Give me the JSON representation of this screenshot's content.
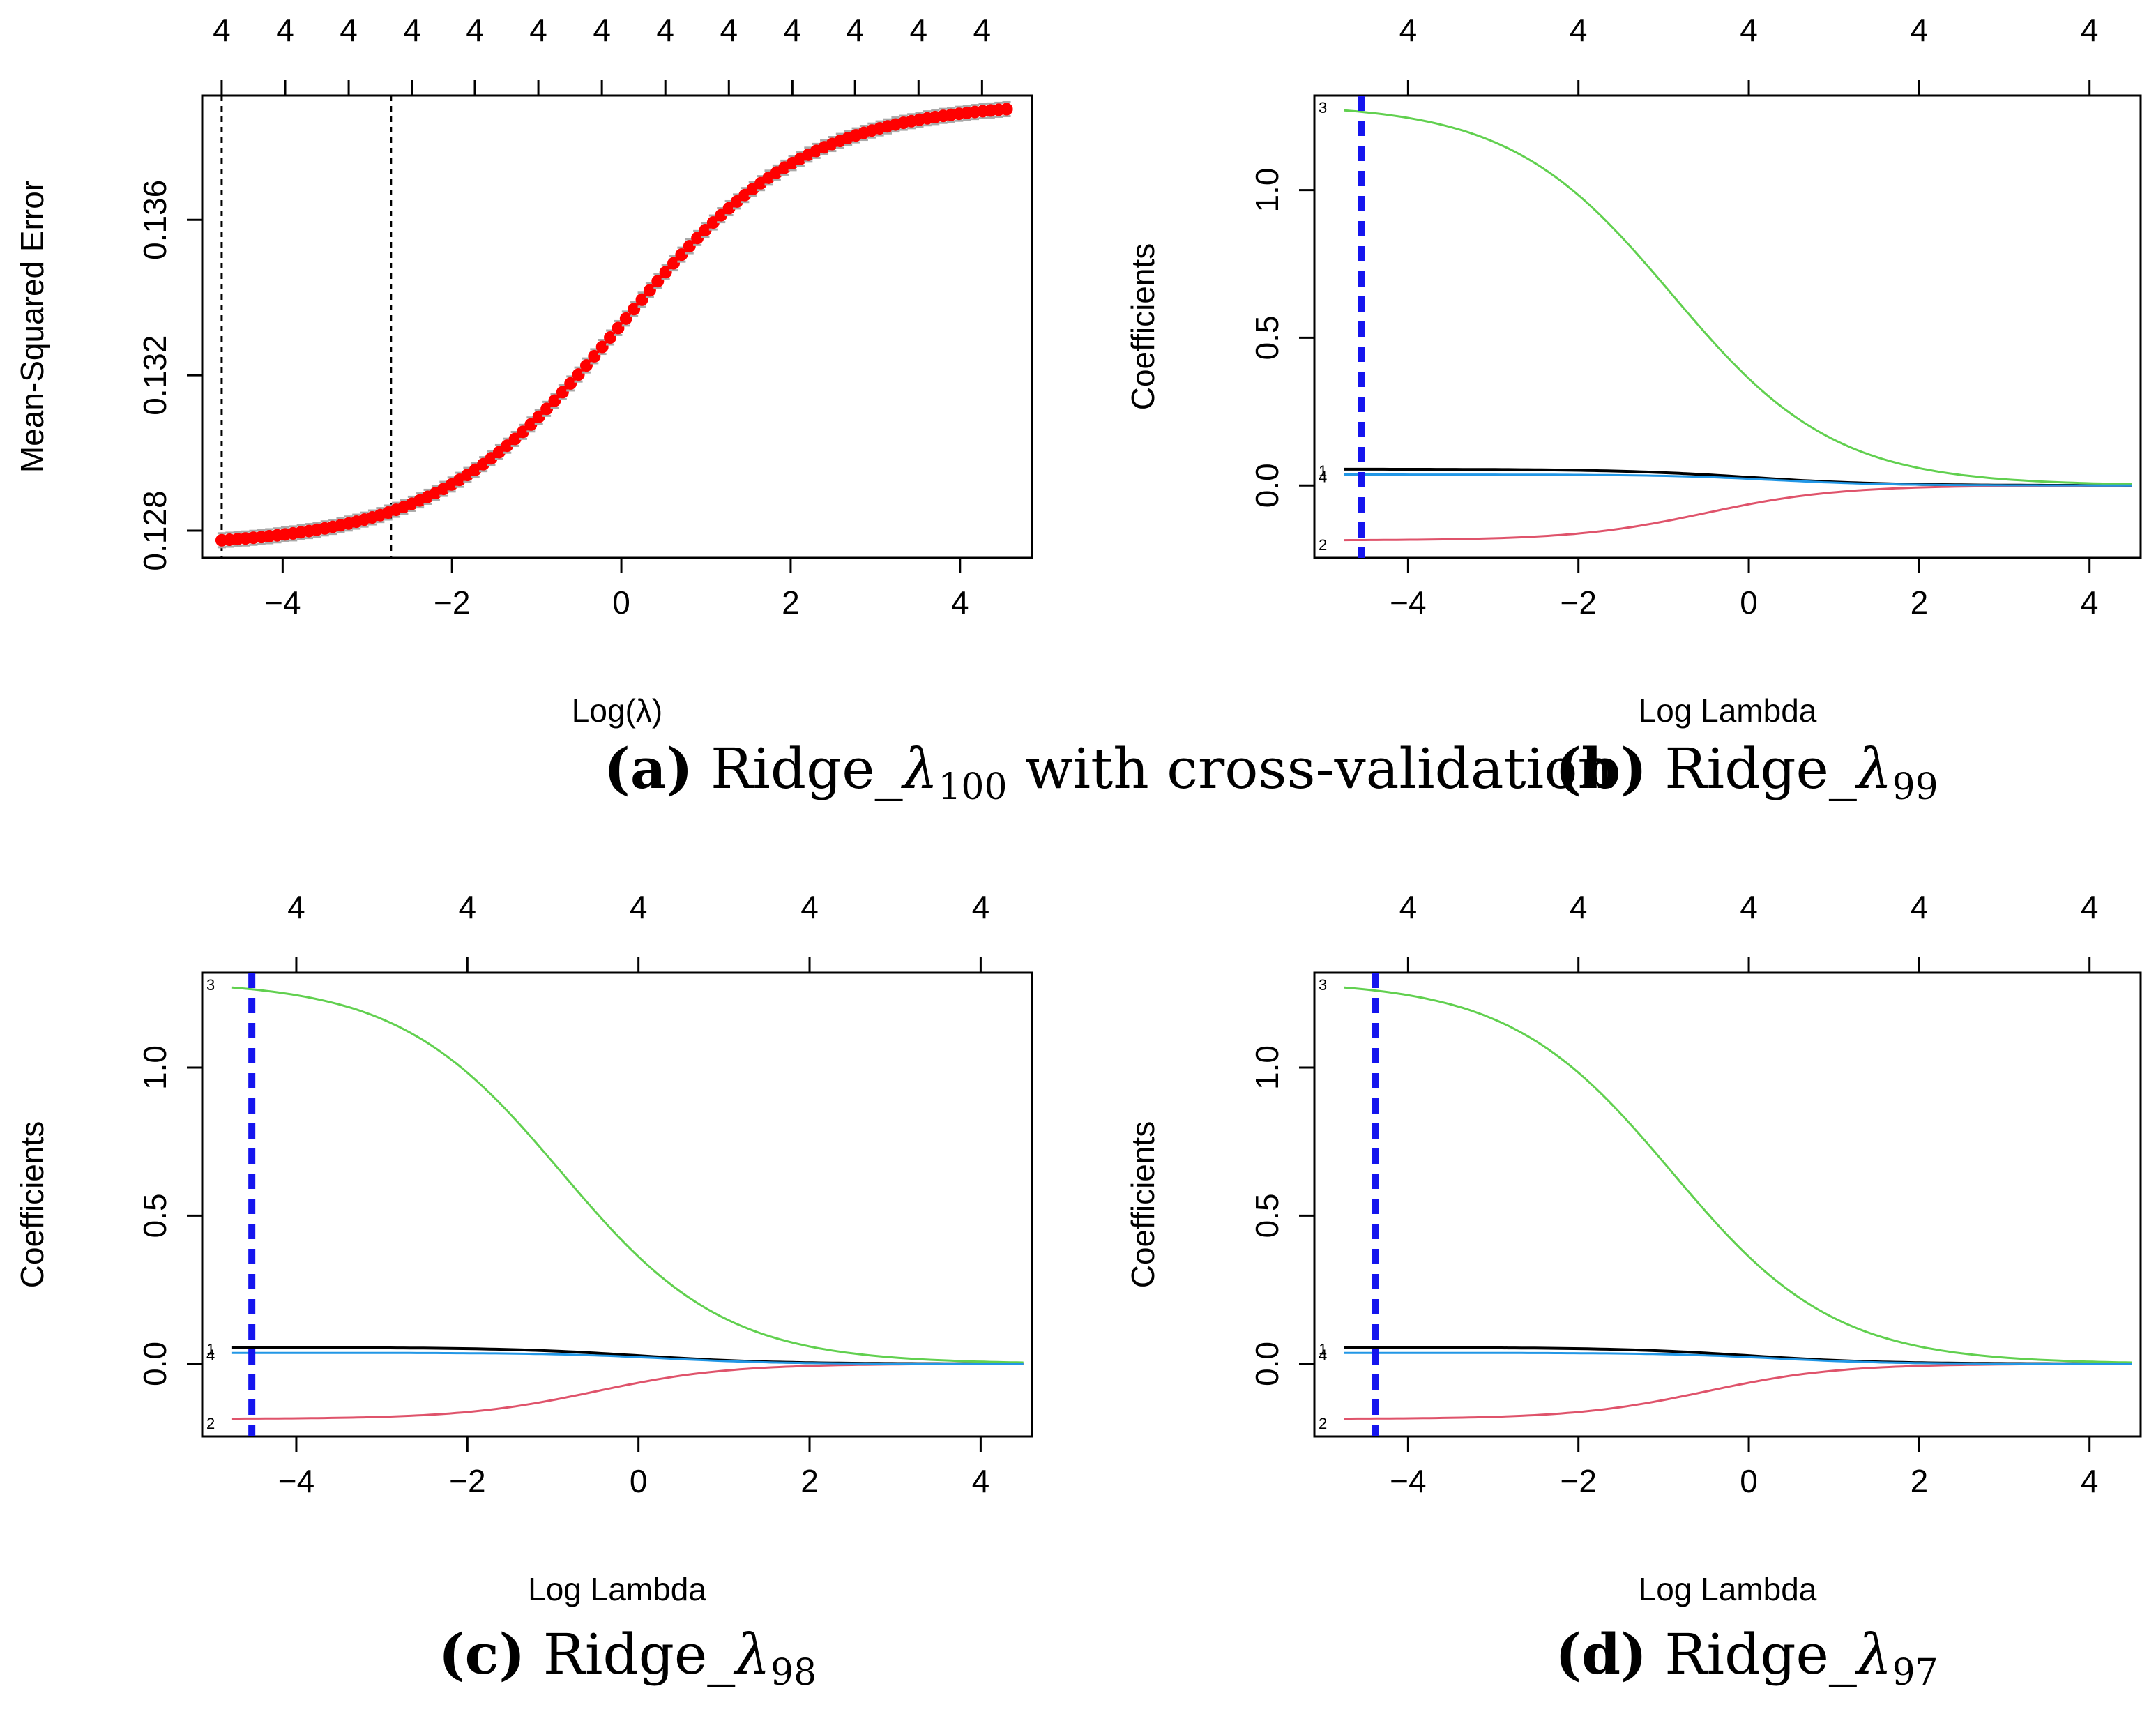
{
  "colors": {
    "cv_points": "#ff0000",
    "cv_errorbars": "#a9a9a9",
    "lambda_line": "#1515ee",
    "var1": "#000000",
    "var2": "#df536b",
    "var3": "#61d04f",
    "var4": "#2297e6"
  },
  "chart_data": [
    {
      "type": "scatter",
      "panel": "a",
      "caption": {
        "label": "(a)",
        "text": "Ridge_",
        "symbol": "λ",
        "subscript": "100",
        "suffix": " with cross-validation"
      },
      "xlabel": "Log(λ)",
      "ylabel": "Mean-Squared Error",
      "xlim": [
        -4.95,
        4.85
      ],
      "ylim": [
        0.1273,
        0.1392
      ],
      "xticks": [
        -4,
        -2,
        0,
        2,
        4
      ],
      "xtick_labels": [
        "−4",
        "−2",
        "0",
        "2",
        "4"
      ],
      "yticks": [
        0.128,
        0.132,
        0.136
      ],
      "ytick_labels": [
        "0.128",
        "0.132",
        "0.136"
      ],
      "top_axis_ticks": [
        -4.72,
        -3.97,
        -3.22,
        -2.47,
        -1.73,
        -0.98,
        -0.23,
        0.52,
        1.27,
        2.02,
        2.76,
        3.51,
        4.26
      ],
      "top_axis_labels": [
        "4",
        "4",
        "4",
        "4",
        "4",
        "4",
        "4",
        "4",
        "4",
        "4",
        "4",
        "4",
        "4"
      ],
      "vlines": [
        -4.72,
        -2.72
      ],
      "series": [
        {
          "name": "cross-validated MSE",
          "x_range": [
            -4.72,
            4.55
          ],
          "points": 100,
          "low": 0.12775,
          "high": 0.13885,
          "mid": 0.0,
          "scale": 0.92,
          "error": 0.00018
        }
      ]
    },
    {
      "type": "line",
      "panel": "b",
      "caption": {
        "label": "(b)",
        "text": "Ridge_",
        "symbol": "λ",
        "subscript": "99",
        "suffix": ""
      },
      "xlabel": "Log Lambda",
      "ylabel": "Coefficients",
      "xlim": [
        -5.1,
        4.6
      ],
      "ylim": [
        -0.245,
        1.32
      ],
      "xticks": [
        -4,
        -2,
        0,
        2,
        4
      ],
      "xtick_labels": [
        "−4",
        "−2",
        "0",
        "2",
        "4"
      ],
      "yticks": [
        0,
        0.5,
        1
      ],
      "ytick_labels": [
        "0.0",
        "0.5",
        "1.0"
      ],
      "top_axis_ticks": [
        -4,
        -2,
        0,
        2,
        4
      ],
      "top_axis_labels": [
        "4",
        "4",
        "4",
        "4",
        "4"
      ],
      "lambda_line": -4.55,
      "series": [
        {
          "name": "1",
          "label_y": 0.05,
          "start": 0.055,
          "x_range": [
            -4.75,
            4.5
          ],
          "mid": 0.0,
          "scale": 1.3
        },
        {
          "name": "2",
          "label_y": -0.2,
          "start": -0.185,
          "x_range": [
            -4.75,
            4.5
          ],
          "mid": -0.5,
          "scale": 1.3
        },
        {
          "name": "3",
          "label_y": 1.28,
          "start": 1.27,
          "x_range": [
            -4.75,
            4.5
          ],
          "mid": -0.9,
          "scale": 1.05
        },
        {
          "name": "4",
          "label_y": 0.03,
          "start": 0.037,
          "x_range": [
            -4.75,
            4.5
          ],
          "mid": 0.3,
          "scale": 1.5
        }
      ]
    },
    {
      "type": "line",
      "panel": "c",
      "caption": {
        "label": "(c)",
        "text": "Ridge_",
        "symbol": "λ",
        "subscript": "98",
        "suffix": ""
      },
      "xlabel": "Log Lambda",
      "ylabel": "Coefficients",
      "xlim": [
        -5.1,
        4.6
      ],
      "ylim": [
        -0.245,
        1.32
      ],
      "xticks": [
        -4,
        -2,
        0,
        2,
        4
      ],
      "xtick_labels": [
        "−4",
        "−2",
        "0",
        "2",
        "4"
      ],
      "yticks": [
        0,
        0.5,
        1
      ],
      "ytick_labels": [
        "0.0",
        "0.5",
        "1.0"
      ],
      "top_axis_ticks": [
        -4,
        -2,
        0,
        2,
        4
      ],
      "top_axis_labels": [
        "4",
        "4",
        "4",
        "4",
        "4"
      ],
      "lambda_line": -4.52,
      "series": [
        {
          "name": "1",
          "label_y": 0.05,
          "start": 0.055,
          "x_range": [
            -4.75,
            4.5
          ],
          "mid": 0.0,
          "scale": 1.3
        },
        {
          "name": "2",
          "label_y": -0.2,
          "start": -0.185,
          "x_range": [
            -4.75,
            4.5
          ],
          "mid": -0.5,
          "scale": 1.3
        },
        {
          "name": "3",
          "label_y": 1.28,
          "start": 1.27,
          "x_range": [
            -4.75,
            4.5
          ],
          "mid": -0.9,
          "scale": 1.05
        },
        {
          "name": "4",
          "label_y": 0.03,
          "start": 0.037,
          "x_range": [
            -4.75,
            4.5
          ],
          "mid": 0.3,
          "scale": 1.5
        }
      ]
    },
    {
      "type": "line",
      "panel": "d",
      "caption": {
        "label": "(d)",
        "text": "Ridge_",
        "symbol": "λ",
        "subscript": "97",
        "suffix": ""
      },
      "xlabel": "Log Lambda",
      "ylabel": "Coefficients",
      "xlim": [
        -5.1,
        4.6
      ],
      "ylim": [
        -0.245,
        1.32
      ],
      "xticks": [
        -4,
        -2,
        0,
        2,
        4
      ],
      "xtick_labels": [
        "−4",
        "−2",
        "0",
        "2",
        "4"
      ],
      "yticks": [
        0,
        0.5,
        1
      ],
      "ytick_labels": [
        "0.0",
        "0.5",
        "1.0"
      ],
      "top_axis_ticks": [
        -4,
        -2,
        0,
        2,
        4
      ],
      "top_axis_labels": [
        "4",
        "4",
        "4",
        "4",
        "4"
      ],
      "lambda_line": -4.38,
      "series": [
        {
          "name": "1",
          "label_y": 0.05,
          "start": 0.055,
          "x_range": [
            -4.75,
            4.5
          ],
          "mid": 0.0,
          "scale": 1.3
        },
        {
          "name": "2",
          "label_y": -0.2,
          "start": -0.185,
          "x_range": [
            -4.75,
            4.5
          ],
          "mid": -0.5,
          "scale": 1.3
        },
        {
          "name": "3",
          "label_y": 1.28,
          "start": 1.27,
          "x_range": [
            -4.75,
            4.5
          ],
          "mid": -0.9,
          "scale": 1.05
        },
        {
          "name": "4",
          "label_y": 0.03,
          "start": 0.037,
          "x_range": [
            -4.75,
            4.5
          ],
          "mid": 0.3,
          "scale": 1.5
        }
      ]
    }
  ]
}
